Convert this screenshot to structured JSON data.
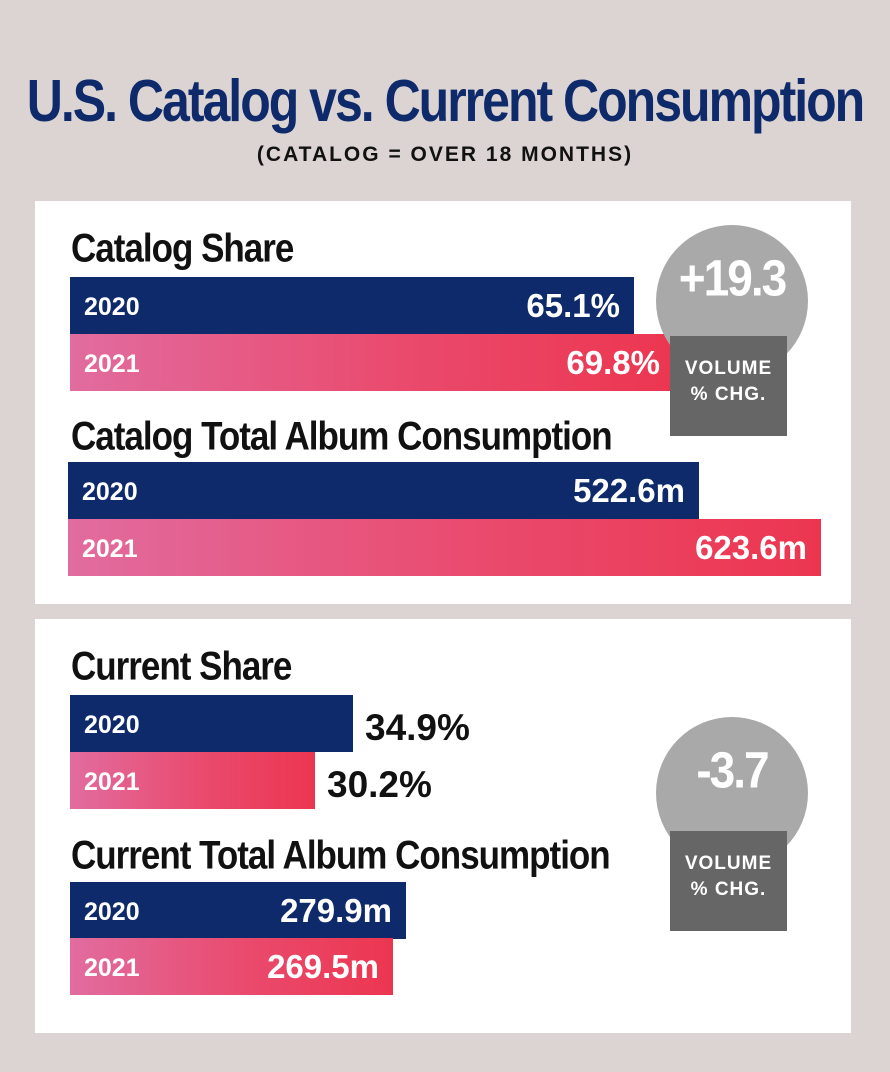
{
  "header": {
    "title": "U.S. Catalog vs. Current Consumption",
    "subtitle": "(CATALOG = OVER 18 MONTHS)"
  },
  "colors": {
    "navy": "#0e2a6b",
    "pink_start": "#e16c9f",
    "pink_end": "#ec3650",
    "badge_gray": "#a9a9a9",
    "badge_dark": "#666666",
    "background": "#dcd4d2"
  },
  "chart_data": [
    {
      "type": "bar",
      "title": "Catalog Share",
      "categories": [
        "2020",
        "2021"
      ],
      "values": [
        65.1,
        69.8
      ],
      "value_labels": [
        "65.1%",
        "69.8%"
      ],
      "unit": "%"
    },
    {
      "type": "bar",
      "title": "Catalog Total Album Consumption",
      "categories": [
        "2020",
        "2021"
      ],
      "values": [
        522.6,
        623.6
      ],
      "value_labels": [
        "522.6m",
        "623.6m"
      ],
      "unit": "m"
    },
    {
      "type": "bar",
      "title": "Current Share",
      "categories": [
        "2020",
        "2021"
      ],
      "values": [
        34.9,
        30.2
      ],
      "value_labels": [
        "34.9%",
        "30.2%"
      ],
      "unit": "%"
    },
    {
      "type": "bar",
      "title": "Current Total Album Consumption",
      "categories": [
        "2020",
        "2021"
      ],
      "values": [
        279.9,
        269.5
      ],
      "value_labels": [
        "279.9m",
        "269.5m"
      ],
      "unit": "m"
    }
  ],
  "badges": {
    "catalog": {
      "value": "+19.3",
      "line1": "VOLUME",
      "line2": "% CHG."
    },
    "current": {
      "value": "-3.7",
      "line1": "VOLUME",
      "line2": "% CHG."
    }
  }
}
